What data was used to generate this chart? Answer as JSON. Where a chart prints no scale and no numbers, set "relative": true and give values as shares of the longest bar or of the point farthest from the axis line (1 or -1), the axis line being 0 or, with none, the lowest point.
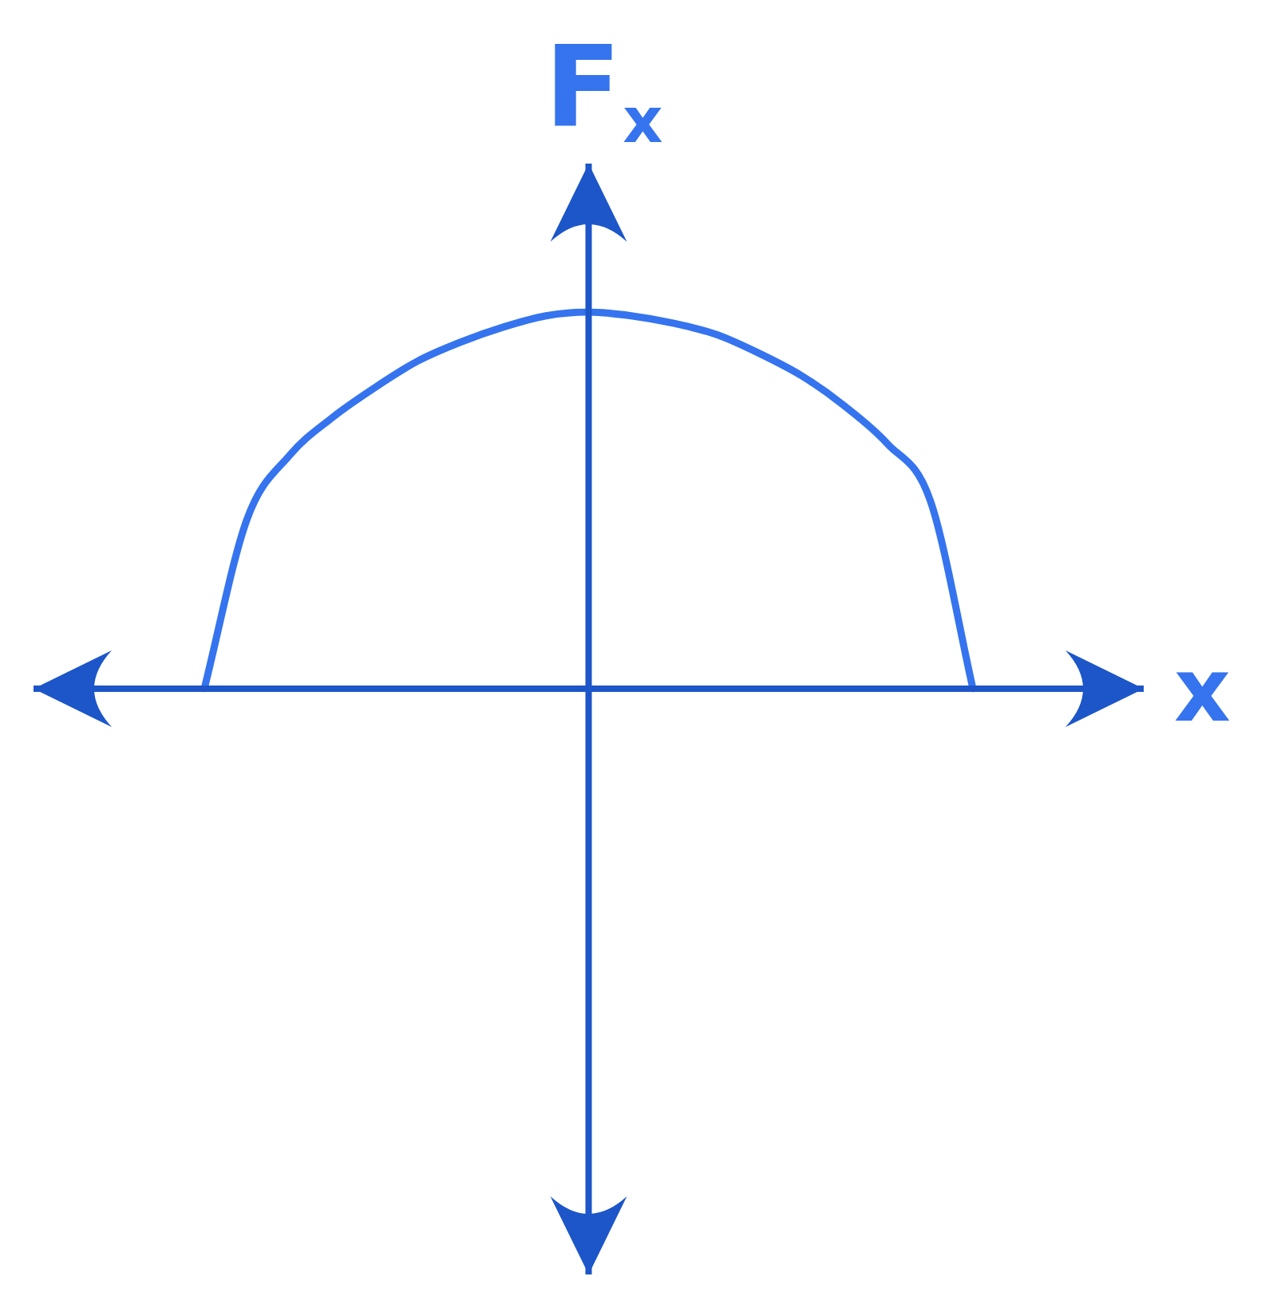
{
  "chart_data": {
    "type": "line",
    "relative": true,
    "xlabel": "x",
    "ylabel": "F$_{x}$",
    "categories": [
      null,
      null,
      null,
      null,
      null,
      null,
      null,
      null,
      null,
      null,
      null,
      null,
      null,
      null,
      null,
      null,
      null,
      null,
      null,
      null,
      null,
      null,
      null,
      null,
      null,
      null,
      null
    ],
    "series": [
      {
        "color": "#3574ee",
        "values": [
          null,
          null,
          null,
          null,
          0,
          0.45,
          0.62,
          0.72,
          0.8,
          0.87,
          0.92,
          0.96,
          0.99,
          1,
          0.99,
          0.97,
          0.94,
          0.89,
          0.83,
          0.75,
          0.65,
          0.5,
          0,
          null,
          null,
          null,
          null
        ]
      }
    ],
    "marker": "none",
    "legend": false
  }
}
